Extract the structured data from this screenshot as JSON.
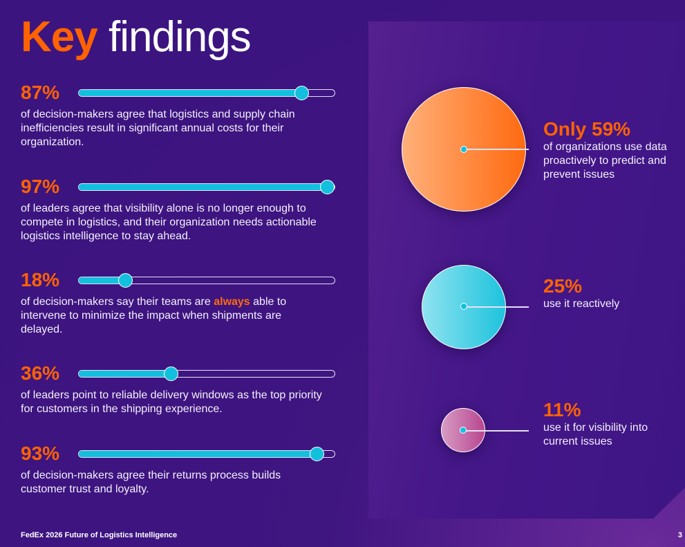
{
  "title": {
    "accent": "Key",
    "rest": "findings"
  },
  "findings": [
    {
      "value": "87%",
      "percent": 87,
      "text": "of decision-makers agree that logistics and supply chain inefficiencies result in significant annual costs for their organization."
    },
    {
      "value": "97%",
      "percent": 97,
      "text": "of leaders agree that visibility alone is no longer enough to compete in logistics, and their organization needs actionable logistics intelligence to stay ahead."
    },
    {
      "value": "18%",
      "percent": 18,
      "text_before": "of decision-makers say their teams are ",
      "emphasis": "always",
      "text_after": " able to intervene to minimize the impact when shipments are delayed."
    },
    {
      "value": "36%",
      "percent": 36,
      "text": "of leaders point to reliable delivery windows as the top priority for customers in the shipping experience."
    },
    {
      "value": "93%",
      "percent": 93,
      "text": "of decision-makers agree their returns process builds customer trust and loyalty."
    }
  ],
  "data_use": [
    {
      "value": "Only 59%",
      "percent": 59,
      "text": "of organizations use data proactively to predict and prevent issues",
      "color": "#ff6a10"
    },
    {
      "value": "25%",
      "percent": 25,
      "text": "use it reactively",
      "color": "#1ec3dd"
    },
    {
      "value": "11%",
      "percent": 11,
      "text": "use it for visibility into current issues",
      "color": "#b8468f"
    }
  ],
  "colors": {
    "accent": "#ff6200",
    "slider": "#12c0de",
    "background": "#3d1480"
  },
  "footer": {
    "label": "FedEx 2026 Future of Logistics Intelligence",
    "page": "3"
  }
}
